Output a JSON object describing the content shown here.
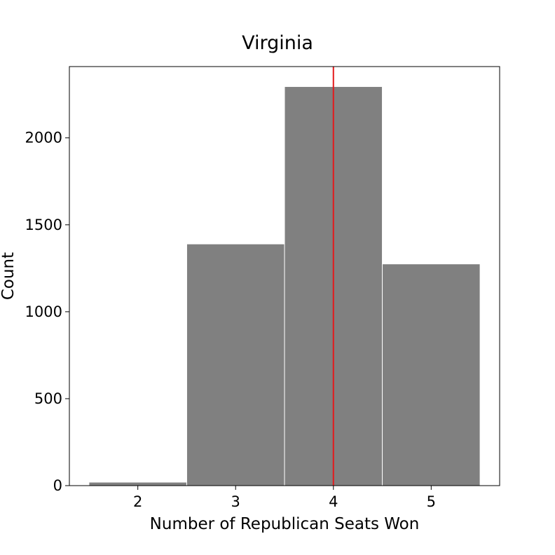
{
  "chart_data": {
    "type": "bar",
    "title": "Virginia",
    "xlabel": "Number of Republican Seats Won",
    "ylabel": "Count",
    "categories": [
      "2",
      "3",
      "4",
      "5"
    ],
    "x": [
      2,
      3,
      4,
      5
    ],
    "values": [
      20,
      1390,
      2295,
      1275
    ],
    "xlim": [
      1.3,
      5.7
    ],
    "ylim": [
      0,
      2410
    ],
    "xticks": [
      2,
      3,
      4,
      5
    ],
    "yticks": [
      0,
      500,
      1000,
      1500,
      2000
    ],
    "bar_color": "#808080",
    "bar_edge_color": "#ffffff",
    "reference_line": {
      "x": 4,
      "color": "#e31a1c"
    },
    "grid": false,
    "legend": "none"
  }
}
